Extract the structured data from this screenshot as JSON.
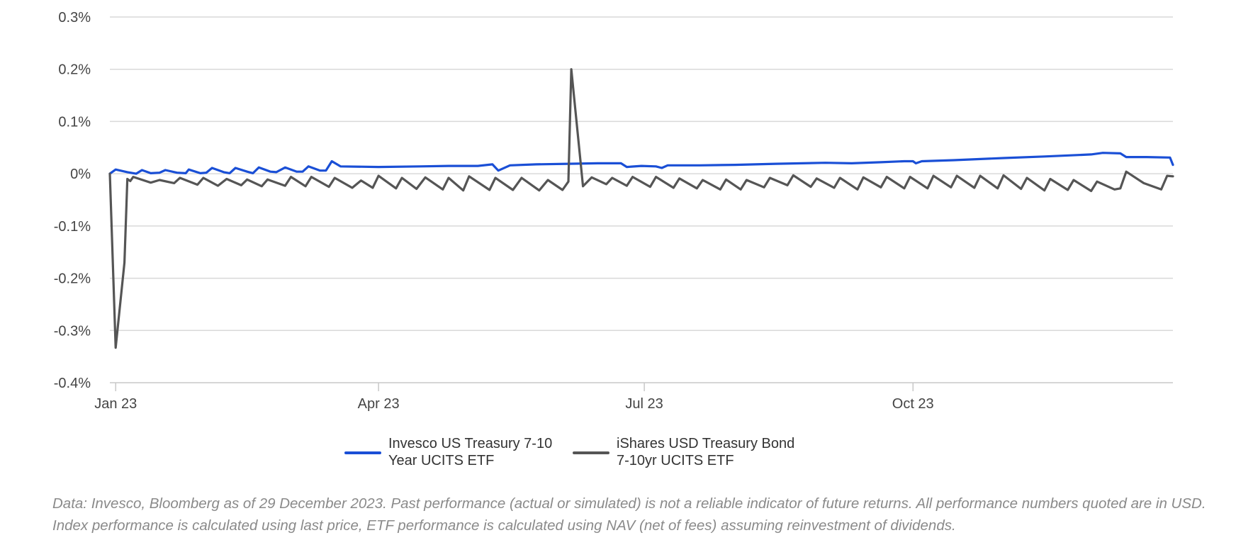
{
  "chart_data": {
    "type": "line",
    "title": "",
    "xlabel": "",
    "ylabel": "",
    "ylim": [
      -0.4,
      0.3
    ],
    "y_ticks": [
      {
        "value": 0.3,
        "label": "0.3%"
      },
      {
        "value": 0.2,
        "label": "0.2%"
      },
      {
        "value": 0.1,
        "label": "0.1%"
      },
      {
        "value": 0.0,
        "label": "0%"
      },
      {
        "value": -0.1,
        "label": "-0.1%"
      },
      {
        "value": -0.2,
        "label": "-0.2%"
      },
      {
        "value": -0.3,
        "label": "-0.3%"
      },
      {
        "value": -0.4,
        "label": "-0.4%"
      }
    ],
    "xlim": [
      "2022-12-30",
      "2023-12-29"
    ],
    "x_ticks": [
      {
        "date": "2023-01-01",
        "label": "Jan 23"
      },
      {
        "date": "2023-04-01",
        "label": "Apr 23"
      },
      {
        "date": "2023-07-01",
        "label": "Jul 23"
      },
      {
        "date": "2023-10-01",
        "label": "Oct 23"
      }
    ],
    "grid": "horizontal",
    "legend_position": "bottom",
    "series": [
      {
        "name": "Invesco US Treasury 7-10 Year UCITS ETF",
        "color": "#1a4fd6",
        "points": [
          [
            "2022-12-30",
            0.0
          ],
          [
            "2023-01-01",
            0.008
          ],
          [
            "2023-01-05",
            0.003
          ],
          [
            "2023-01-08",
            0.0
          ],
          [
            "2023-01-10",
            0.007
          ],
          [
            "2023-01-13",
            0.001
          ],
          [
            "2023-01-16",
            0.002
          ],
          [
            "2023-01-18",
            0.007
          ],
          [
            "2023-01-22",
            0.002
          ],
          [
            "2023-01-25",
            0.001
          ],
          [
            "2023-01-26",
            0.008
          ],
          [
            "2023-01-30",
            0.001
          ],
          [
            "2023-02-01",
            0.002
          ],
          [
            "2023-02-03",
            0.011
          ],
          [
            "2023-02-07",
            0.003
          ],
          [
            "2023-02-09",
            0.001
          ],
          [
            "2023-02-11",
            0.011
          ],
          [
            "2023-02-15",
            0.004
          ],
          [
            "2023-02-17",
            0.001
          ],
          [
            "2023-02-19",
            0.012
          ],
          [
            "2023-02-23",
            0.004
          ],
          [
            "2023-02-25",
            0.003
          ],
          [
            "2023-02-28",
            0.012
          ],
          [
            "2023-03-04",
            0.004
          ],
          [
            "2023-03-06",
            0.004
          ],
          [
            "2023-03-08",
            0.014
          ],
          [
            "2023-03-12",
            0.006
          ],
          [
            "2023-03-14",
            0.006
          ],
          [
            "2023-03-16",
            0.024
          ],
          [
            "2023-03-19",
            0.014
          ],
          [
            "2023-04-01",
            0.013
          ],
          [
            "2023-04-15",
            0.014
          ],
          [
            "2023-04-25",
            0.015
          ],
          [
            "2023-05-05",
            0.015
          ],
          [
            "2023-05-10",
            0.018
          ],
          [
            "2023-05-12",
            0.006
          ],
          [
            "2023-05-16",
            0.016
          ],
          [
            "2023-05-25",
            0.018
          ],
          [
            "2023-06-05",
            0.019
          ],
          [
            "2023-06-15",
            0.02
          ],
          [
            "2023-06-23",
            0.02
          ],
          [
            "2023-06-25",
            0.013
          ],
          [
            "2023-06-30",
            0.015
          ],
          [
            "2023-07-05",
            0.014
          ],
          [
            "2023-07-07",
            0.011
          ],
          [
            "2023-07-09",
            0.016
          ],
          [
            "2023-07-20",
            0.016
          ],
          [
            "2023-08-01",
            0.017
          ],
          [
            "2023-08-15",
            0.019
          ],
          [
            "2023-09-01",
            0.021
          ],
          [
            "2023-09-10",
            0.02
          ],
          [
            "2023-09-20",
            0.022
          ],
          [
            "2023-09-28",
            0.024
          ],
          [
            "2023-10-01",
            0.024
          ],
          [
            "2023-10-02",
            0.02
          ],
          [
            "2023-10-04",
            0.024
          ],
          [
            "2023-10-15",
            0.026
          ],
          [
            "2023-11-01",
            0.03
          ],
          [
            "2023-11-15",
            0.033
          ],
          [
            "2023-12-01",
            0.037
          ],
          [
            "2023-12-05",
            0.04
          ],
          [
            "2023-12-11",
            0.039
          ],
          [
            "2023-12-13",
            0.032
          ],
          [
            "2023-12-20",
            0.032
          ],
          [
            "2023-12-28",
            0.031
          ],
          [
            "2023-12-29",
            0.017
          ]
        ]
      },
      {
        "name": "iShares USD Treasury Bond 7-10yr UCITS ETF",
        "color": "#555555",
        "points": [
          [
            "2022-12-30",
            0.0
          ],
          [
            "2023-01-01",
            -0.333
          ],
          [
            "2023-01-04",
            -0.17
          ],
          [
            "2023-01-05",
            -0.01
          ],
          [
            "2023-01-06",
            -0.014
          ],
          [
            "2023-01-07",
            -0.006
          ],
          [
            "2023-01-13",
            -0.017
          ],
          [
            "2023-01-16",
            -0.012
          ],
          [
            "2023-01-21",
            -0.018
          ],
          [
            "2023-01-23",
            -0.008
          ],
          [
            "2023-01-29",
            -0.021
          ],
          [
            "2023-01-31",
            -0.008
          ],
          [
            "2023-02-05",
            -0.023
          ],
          [
            "2023-02-08",
            -0.01
          ],
          [
            "2023-02-13",
            -0.022
          ],
          [
            "2023-02-15",
            -0.011
          ],
          [
            "2023-02-20",
            -0.024
          ],
          [
            "2023-02-22",
            -0.011
          ],
          [
            "2023-02-28",
            -0.023
          ],
          [
            "2023-03-02",
            -0.006
          ],
          [
            "2023-03-07",
            -0.024
          ],
          [
            "2023-03-09",
            -0.006
          ],
          [
            "2023-03-15",
            -0.025
          ],
          [
            "2023-03-17",
            -0.008
          ],
          [
            "2023-03-23",
            -0.027
          ],
          [
            "2023-03-26",
            -0.013
          ],
          [
            "2023-03-30",
            -0.027
          ],
          [
            "2023-04-01",
            -0.004
          ],
          [
            "2023-04-07",
            -0.028
          ],
          [
            "2023-04-09",
            -0.008
          ],
          [
            "2023-04-14",
            -0.029
          ],
          [
            "2023-04-17",
            -0.007
          ],
          [
            "2023-04-23",
            -0.03
          ],
          [
            "2023-04-25",
            -0.008
          ],
          [
            "2023-04-30",
            -0.032
          ],
          [
            "2023-05-02",
            -0.005
          ],
          [
            "2023-05-09",
            -0.031
          ],
          [
            "2023-05-11",
            -0.008
          ],
          [
            "2023-05-17",
            -0.031
          ],
          [
            "2023-05-20",
            -0.008
          ],
          [
            "2023-05-26",
            -0.032
          ],
          [
            "2023-05-29",
            -0.012
          ],
          [
            "2023-06-03",
            -0.031
          ],
          [
            "2023-06-05",
            -0.015
          ],
          [
            "2023-06-06",
            0.2
          ],
          [
            "2023-06-10",
            -0.024
          ],
          [
            "2023-06-13",
            -0.007
          ],
          [
            "2023-06-18",
            -0.02
          ],
          [
            "2023-06-20",
            -0.008
          ],
          [
            "2023-06-25",
            -0.023
          ],
          [
            "2023-06-27",
            -0.006
          ],
          [
            "2023-07-03",
            -0.025
          ],
          [
            "2023-07-05",
            -0.006
          ],
          [
            "2023-07-11",
            -0.027
          ],
          [
            "2023-07-13",
            -0.009
          ],
          [
            "2023-07-19",
            -0.028
          ],
          [
            "2023-07-21",
            -0.012
          ],
          [
            "2023-07-27",
            -0.03
          ],
          [
            "2023-07-29",
            -0.011
          ],
          [
            "2023-08-03",
            -0.03
          ],
          [
            "2023-08-05",
            -0.012
          ],
          [
            "2023-08-11",
            -0.026
          ],
          [
            "2023-08-13",
            -0.008
          ],
          [
            "2023-08-19",
            -0.022
          ],
          [
            "2023-08-21",
            -0.003
          ],
          [
            "2023-08-27",
            -0.025
          ],
          [
            "2023-08-29",
            -0.009
          ],
          [
            "2023-09-04",
            -0.027
          ],
          [
            "2023-09-06",
            -0.008
          ],
          [
            "2023-09-12",
            -0.03
          ],
          [
            "2023-09-14",
            -0.007
          ],
          [
            "2023-09-20",
            -0.026
          ],
          [
            "2023-09-22",
            -0.006
          ],
          [
            "2023-09-28",
            -0.028
          ],
          [
            "2023-09-30",
            -0.006
          ],
          [
            "2023-10-06",
            -0.028
          ],
          [
            "2023-10-08",
            -0.004
          ],
          [
            "2023-10-14",
            -0.026
          ],
          [
            "2023-10-16",
            -0.004
          ],
          [
            "2023-10-22",
            -0.027
          ],
          [
            "2023-10-24",
            -0.004
          ],
          [
            "2023-10-30",
            -0.028
          ],
          [
            "2023-11-01",
            -0.003
          ],
          [
            "2023-11-07",
            -0.029
          ],
          [
            "2023-11-09",
            -0.008
          ],
          [
            "2023-11-15",
            -0.032
          ],
          [
            "2023-11-17",
            -0.01
          ],
          [
            "2023-11-23",
            -0.031
          ],
          [
            "2023-11-25",
            -0.012
          ],
          [
            "2023-12-01",
            -0.033
          ],
          [
            "2023-12-03",
            -0.015
          ],
          [
            "2023-12-09",
            -0.03
          ],
          [
            "2023-12-11",
            -0.028
          ],
          [
            "2023-12-13",
            0.004
          ],
          [
            "2023-12-19",
            -0.018
          ],
          [
            "2023-12-25",
            -0.03
          ],
          [
            "2023-12-27",
            -0.004
          ],
          [
            "2023-12-29",
            -0.005
          ]
        ]
      }
    ]
  },
  "legend": [
    {
      "line1": "Invesco US Treasury 7-10",
      "line2": "Year UCITS ETF",
      "color": "#1a4fd6"
    },
    {
      "line1": "iShares USD Treasury Bond",
      "line2": "7-10yr UCITS ETF",
      "color": "#555555"
    }
  ],
  "footnote": "Data: Invesco, Bloomberg as of 29 December 2023. Past performance (actual or simulated) is not a reliable indicator of future returns. All performance numbers quoted are in USD. Index performance is calculated using last price, ETF performance is calculated using NAV (net of fees) assuming reinvestment of dividends."
}
